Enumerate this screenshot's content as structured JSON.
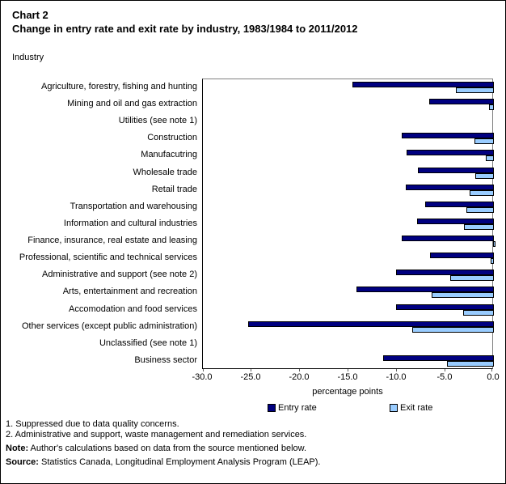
{
  "header": {
    "chart_label": "Chart 2",
    "title": "Change in entry rate and exit rate by industry, 1983/1984 to 2011/2012"
  },
  "y_axis_title": "Industry",
  "chart_data": {
    "type": "bar",
    "orientation": "horizontal",
    "title": "Change in entry rate and exit rate by industry, 1983/1984 to 2011/2012",
    "xlabel": "percentage points",
    "ylabel": "Industry",
    "xlim": [
      -30.0,
      0.0
    ],
    "x_ticks": [
      -30.0,
      -25.0,
      -20.0,
      -15.0,
      -10.0,
      -5.0,
      0.0
    ],
    "x_tick_labels": [
      "-30.0",
      "-25.0",
      "-20.0",
      "-15.0",
      "-10.0",
      "-5.0",
      "0.0"
    ],
    "grid": false,
    "legend_position": "bottom",
    "categories": [
      "Agriculture, forestry, fishing and hunting",
      "Mining and oil and gas extraction",
      "Utilities (see note 1)",
      "Construction",
      "Manufacutring",
      "Wholesale trade",
      "Retail trade",
      "Transportation and warehousing",
      "Information and cultural industries",
      "Finance, insurance, real estate and leasing",
      "Professional, scientific and technical services",
      "Administrative and support (see note 2)",
      "Arts, entertainment and recreation",
      "Accomodation and food services",
      "Other services (except public administration)",
      "Unclassified (see note 1)",
      "Business sector"
    ],
    "series": [
      {
        "name": "Entry rate",
        "color": "#000080",
        "values": [
          -14.6,
          -6.7,
          null,
          -9.5,
          -9.0,
          -7.8,
          -9.1,
          -7.1,
          -7.9,
          -9.5,
          -6.6,
          -10.1,
          -14.2,
          -10.1,
          -25.3,
          null,
          -11.4
        ]
      },
      {
        "name": "Exit rate",
        "color": "#99CCFF",
        "values": [
          -3.9,
          -0.5,
          null,
          -2.0,
          -0.8,
          -1.9,
          -2.5,
          -2.8,
          -3.1,
          -0.1,
          -0.3,
          -4.5,
          -6.4,
          -3.2,
          -8.4,
          null,
          -4.8
        ]
      }
    ]
  },
  "footnotes": [
    "1. Suppressed due to data quality concerns.",
    "2. Administrative and support, waste management and remediation services."
  ],
  "note": {
    "label": "Note:",
    "text": " Author's calculations based on data from the source mentioned below."
  },
  "source": {
    "label": "Source:",
    "text": " Statistics Canada, Longitudinal Employment Analysis Program (LEAP)."
  }
}
